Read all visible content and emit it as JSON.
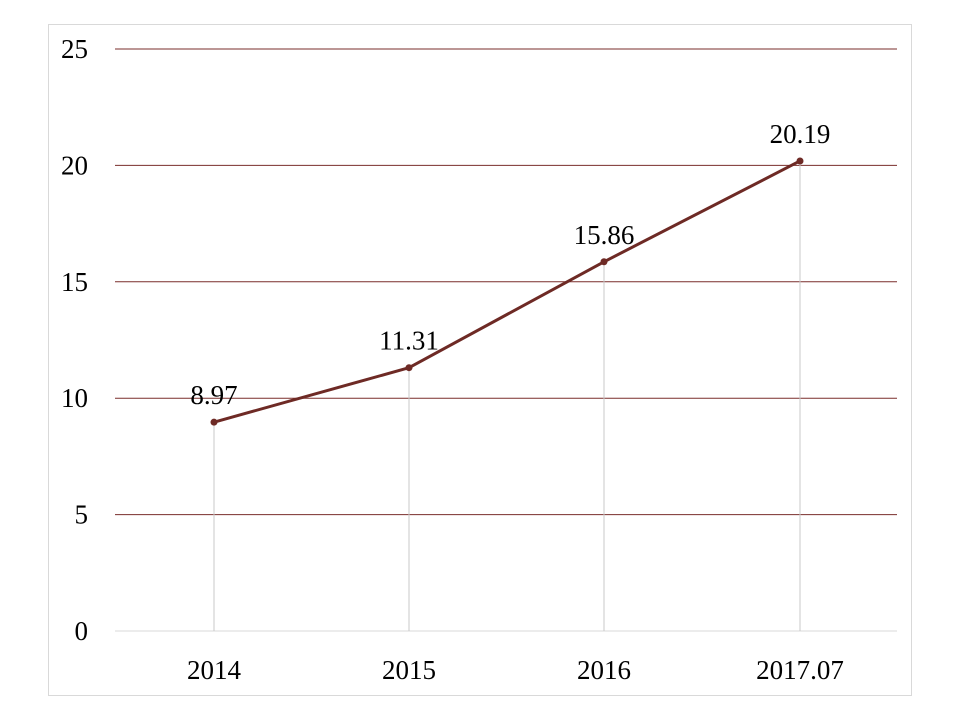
{
  "chart_data": {
    "type": "line",
    "title": "",
    "xlabel": "",
    "ylabel": "",
    "categories": [
      "2014",
      "2015",
      "2016",
      "2017.07"
    ],
    "series": [
      {
        "values": [
          8.97,
          11.31,
          15.86,
          20.19
        ],
        "data_labels": [
          "8.97",
          "11.31",
          "15.86",
          "20.19"
        ],
        "color": "#6e2a25"
      }
    ],
    "ylim": [
      0,
      25
    ],
    "yticks": [
      0,
      5,
      10,
      15,
      20,
      25
    ],
    "grid": "horizontal",
    "gridline_color": "#7a2e2b",
    "drop_line_color": "#c8c8c8",
    "legend": "none"
  }
}
